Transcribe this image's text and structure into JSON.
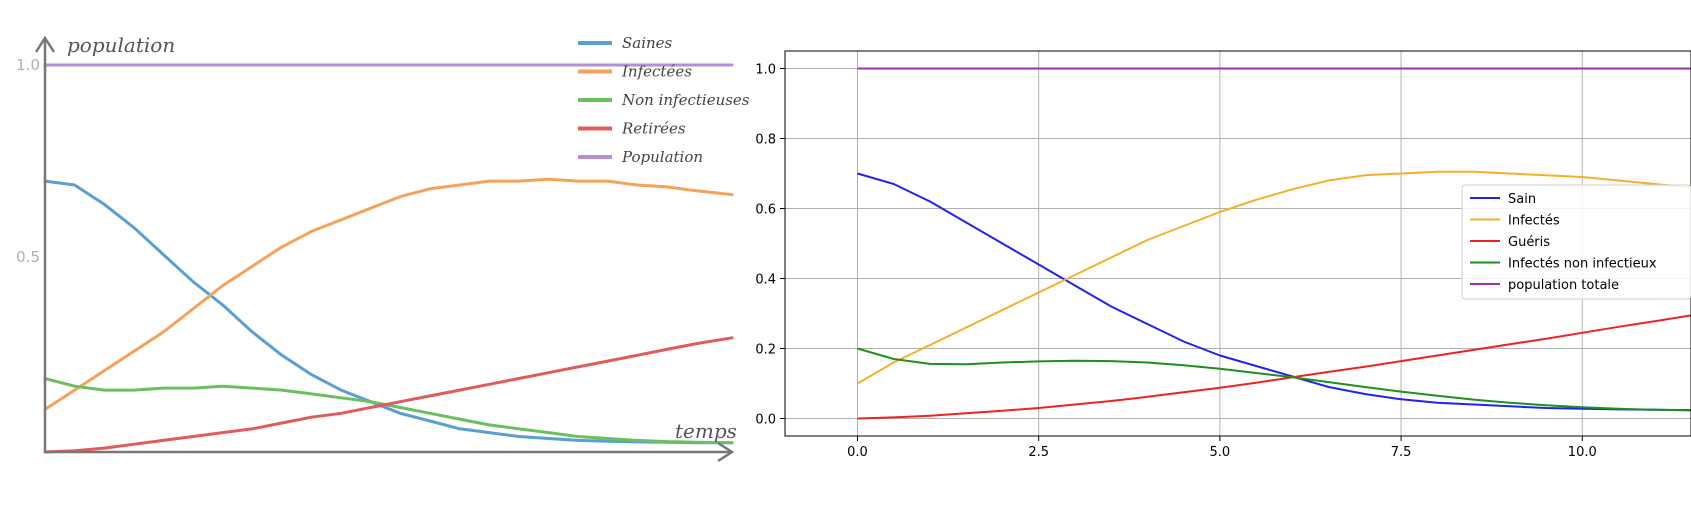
{
  "chart_data": [
    {
      "type": "line",
      "title": "",
      "xlabel": "temps",
      "ylabel": "population",
      "xlim": [
        0,
        11.6
      ],
      "ylim": [
        0,
        1.0
      ],
      "yticks": [
        {
          "value": 0.5,
          "label": "0.5"
        },
        {
          "value": 1.0,
          "label": "1.0"
        }
      ],
      "grid": false,
      "legend_position": "top-right",
      "x": [
        0,
        0.5,
        1,
        1.5,
        2,
        2.5,
        3,
        3.5,
        4,
        4.5,
        5,
        5.5,
        6,
        6.5,
        7,
        7.5,
        8,
        8.5,
        9,
        9.5,
        10,
        10.5,
        11,
        11.6
      ],
      "series": [
        {
          "name": "Saines",
          "color": "#5a9fd4",
          "values": [
            0.7,
            0.69,
            0.64,
            0.58,
            0.51,
            0.44,
            0.38,
            0.31,
            0.25,
            0.2,
            0.16,
            0.13,
            0.1,
            0.08,
            0.06,
            0.05,
            0.04,
            0.035,
            0.03,
            0.028,
            0.026,
            0.025,
            0.024,
            0.024
          ]
        },
        {
          "name": "Infectées",
          "color": "#f5a25a",
          "values": [
            0.11,
            0.16,
            0.21,
            0.26,
            0.31,
            0.37,
            0.43,
            0.48,
            0.53,
            0.57,
            0.6,
            0.63,
            0.66,
            0.68,
            0.69,
            0.7,
            0.7,
            0.705,
            0.7,
            0.7,
            0.69,
            0.685,
            0.675,
            0.665
          ]
        },
        {
          "name": "Non infectieuses",
          "color": "#6bbf5e",
          "values": [
            0.19,
            0.17,
            0.16,
            0.16,
            0.165,
            0.165,
            0.17,
            0.165,
            0.16,
            0.15,
            0.14,
            0.13,
            0.115,
            0.1,
            0.085,
            0.07,
            0.06,
            0.05,
            0.04,
            0.035,
            0.03,
            0.027,
            0.025,
            0.024
          ]
        },
        {
          "name": "Retirées",
          "color": "#e05c5c",
          "values": [
            0.0,
            0.003,
            0.01,
            0.02,
            0.03,
            0.04,
            0.05,
            0.06,
            0.075,
            0.09,
            0.1,
            0.115,
            0.13,
            0.145,
            0.16,
            0.175,
            0.19,
            0.205,
            0.22,
            0.235,
            0.25,
            0.265,
            0.28,
            0.295
          ]
        },
        {
          "name": "Population",
          "color": "#b58fd6",
          "values": [
            1.0,
            1.0,
            1.0,
            1.0,
            1.0,
            1.0,
            1.0,
            1.0,
            1.0,
            1.0,
            1.0,
            1.0,
            1.0,
            1.0,
            1.0,
            1.0,
            1.0,
            1.0,
            1.0,
            1.0,
            1.0,
            1.0,
            1.0,
            1.0
          ]
        }
      ]
    },
    {
      "type": "line",
      "title": "",
      "xlabel": "",
      "ylabel": "",
      "xlim": [
        -1,
        11.5
      ],
      "ylim": [
        -0.05,
        1.05
      ],
      "xticks": [
        {
          "value": 0.0,
          "label": "0.0"
        },
        {
          "value": 2.5,
          "label": "2.5"
        },
        {
          "value": 5.0,
          "label": "5.0"
        },
        {
          "value": 7.5,
          "label": "7.5"
        },
        {
          "value": 10.0,
          "label": "10.0"
        }
      ],
      "yticks": [
        {
          "value": 0.0,
          "label": "0.0"
        },
        {
          "value": 0.2,
          "label": "0.2"
        },
        {
          "value": 0.4,
          "label": "0.4"
        },
        {
          "value": 0.6,
          "label": "0.6"
        },
        {
          "value": 0.8,
          "label": "0.8"
        },
        {
          "value": 1.0,
          "label": "1.0"
        }
      ],
      "grid": true,
      "legend_position": "right",
      "x": [
        0,
        0.5,
        1,
        1.5,
        2,
        2.5,
        3,
        3.5,
        4,
        4.5,
        5,
        5.5,
        6,
        6.5,
        7,
        7.5,
        8,
        8.5,
        9,
        9.5,
        10,
        10.5,
        11,
        11.5
      ],
      "series": [
        {
          "name": "Sain",
          "color": "#2222ee",
          "values": [
            0.7,
            0.67,
            0.62,
            0.56,
            0.5,
            0.44,
            0.38,
            0.32,
            0.27,
            0.22,
            0.18,
            0.15,
            0.12,
            0.09,
            0.07,
            0.055,
            0.045,
            0.04,
            0.035,
            0.03,
            0.028,
            0.026,
            0.025,
            0.024
          ]
        },
        {
          "name": "Infectés",
          "color": "#f5b02a",
          "values": [
            0.1,
            0.16,
            0.21,
            0.26,
            0.31,
            0.36,
            0.41,
            0.46,
            0.51,
            0.55,
            0.59,
            0.625,
            0.655,
            0.68,
            0.695,
            0.7,
            0.705,
            0.705,
            0.7,
            0.695,
            0.69,
            0.68,
            0.67,
            0.66
          ]
        },
        {
          "name": "Guéris",
          "color": "#ee2222",
          "values": [
            0.0,
            0.003,
            0.008,
            0.015,
            0.022,
            0.03,
            0.04,
            0.05,
            0.062,
            0.075,
            0.088,
            0.102,
            0.118,
            0.133,
            0.148,
            0.164,
            0.18,
            0.196,
            0.212,
            0.228,
            0.245,
            0.262,
            0.278,
            0.295
          ]
        },
        {
          "name": "Infectés non infectieux",
          "color": "#1f8f1f",
          "values": [
            0.2,
            0.17,
            0.156,
            0.155,
            0.16,
            0.163,
            0.165,
            0.164,
            0.16,
            0.152,
            0.142,
            0.13,
            0.118,
            0.104,
            0.09,
            0.077,
            0.065,
            0.054,
            0.045,
            0.038,
            0.032,
            0.028,
            0.025,
            0.023
          ]
        },
        {
          "name": "population totale",
          "color": "#9933aa",
          "values": [
            1.0,
            1.0,
            1.0,
            1.0,
            1.0,
            1.0,
            1.0,
            1.0,
            1.0,
            1.0,
            1.0,
            1.0,
            1.0,
            1.0,
            1.0,
            1.0,
            1.0,
            1.0,
            1.0,
            1.0,
            1.0,
            1.0,
            1.0,
            1.0
          ]
        }
      ]
    }
  ]
}
